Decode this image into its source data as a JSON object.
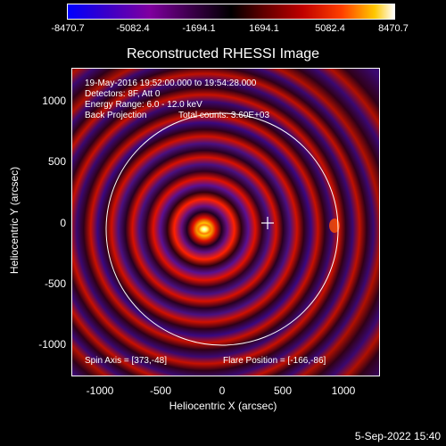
{
  "colorbar": {
    "ticks": [
      "-8470.7",
      "-5082.4",
      "-1694.1",
      "1694.1",
      "5082.4",
      "8470.7"
    ]
  },
  "title": "Reconstructed RHESSI Image",
  "annotations": {
    "time_range": "19-May-2016 19:52:00.000 to 19:54:28.000",
    "detectors": "Detectors: 8F, Att 0",
    "energy": "Energy Range: 6.0 - 12.0 keV",
    "method": "Back Projection",
    "counts": "Total counts: 3.60E+03",
    "spin_axis": "Spin Axis = [373,-48]",
    "flare_position": "Flare Position = [-166,-86]"
  },
  "axes": {
    "xlabel": "Heliocentric X (arcsec)",
    "ylabel": "Heliocentric Y (arcsec)",
    "xticks": [
      "-1000",
      "-500",
      "0",
      "500",
      "1000"
    ],
    "yticks": [
      "1000",
      "500",
      "0",
      "-500",
      "-1000"
    ]
  },
  "timestamp": "5-Sep-2022 15:40"
}
